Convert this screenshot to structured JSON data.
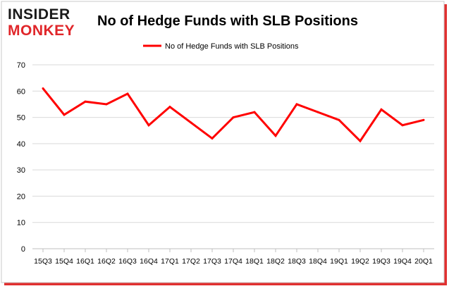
{
  "brand": {
    "logo_line1": "INSIDER",
    "logo_line2": "MONKEY",
    "logo_color_dark": "#1a1a1a",
    "logo_color_red": "#e0262a"
  },
  "colors": {
    "series": "#ff0000",
    "gridline": "#d9d9d9",
    "frame": "#c8c8c8",
    "text": "#000000",
    "shadow": "#e03030"
  },
  "chart_data": {
    "type": "line",
    "title": "No of Hedge Funds with SLB Positions",
    "legend_position": "top",
    "grid": true,
    "xlabel": "",
    "ylabel": "",
    "ylim": [
      0,
      70
    ],
    "yticks": [
      0,
      10,
      20,
      30,
      40,
      50,
      60,
      70
    ],
    "categories": [
      "15Q3",
      "15Q4",
      "16Q1",
      "16Q2",
      "16Q3",
      "16Q4",
      "17Q1",
      "17Q2",
      "17Q3",
      "17Q4",
      "18Q1",
      "18Q2",
      "18Q3",
      "18Q4",
      "19Q1",
      "19Q2",
      "19Q3",
      "19Q4",
      "20Q1"
    ],
    "series": [
      {
        "name": "No of Hedge Funds with SLB Positions",
        "values": [
          61,
          51,
          56,
          55,
          59,
          47,
          54,
          48,
          42,
          50,
          52,
          43,
          55,
          52,
          49,
          41,
          53,
          47,
          49
        ]
      }
    ]
  }
}
